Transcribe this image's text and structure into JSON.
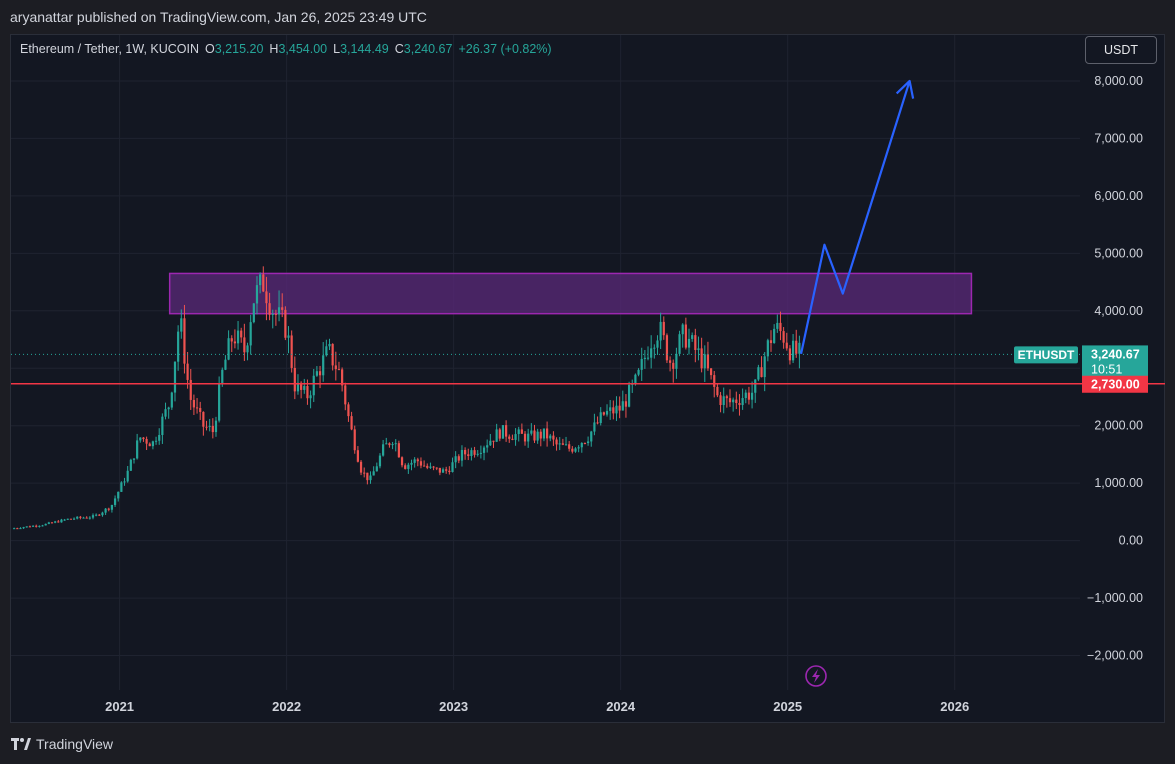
{
  "header": {
    "publisher_text": "aryanattar published on TradingView.com, Jan 26, 2025 23:49 UTC"
  },
  "legend": {
    "symbol": "Ethereum / Tether, 1W, KUCOIN",
    "open_label": "O",
    "open": "3,215.20",
    "high_label": "H",
    "high": "3,454.00",
    "low_label": "L",
    "low": "3,144.49",
    "close_label": "C",
    "close": "3,240.67",
    "change": "+26.37 (+0.82%)"
  },
  "currency_button": "USDT",
  "footer": {
    "brand": "TradingView"
  },
  "colors": {
    "up": "#26a69a",
    "down": "#ef5350",
    "support_line": "#f23645",
    "zone_fill": "#5b2a7a",
    "zone_border": "#9c27b0",
    "arrow": "#2962ff"
  },
  "chart_data": {
    "type": "candlestick",
    "y_axis": {
      "ylim": [
        -2600,
        8800
      ],
      "ticks": [
        -2000,
        -1000,
        0,
        1000,
        2000,
        3000,
        4000,
        5000,
        6000,
        7000,
        8000
      ],
      "tick_labels": [
        "−2,000.00",
        "−1,000.00",
        "0.00",
        "1,000.00",
        "2,000.00",
        "3,000.00",
        "4,000.00",
        "5,000.00",
        "6,000.00",
        "7,000.00",
        "8,000.00"
      ]
    },
    "x_axis": {
      "xlim": [
        2020.35,
        2026.75
      ],
      "ticks": [
        2021,
        2022,
        2023,
        2024,
        2025,
        2026
      ],
      "tick_labels": [
        "2021",
        "2022",
        "2023",
        "2024",
        "2025",
        "2026"
      ]
    },
    "price_path": [
      [
        2020.35,
        210
      ],
      [
        2020.55,
        280
      ],
      [
        2020.7,
        380
      ],
      [
        2020.85,
        420
      ],
      [
        2020.95,
        600
      ],
      [
        2021.05,
        1200
      ],
      [
        2021.12,
        1800
      ],
      [
        2021.2,
        1700
      ],
      [
        2021.3,
        2400
      ],
      [
        2021.36,
        3900
      ],
      [
        2021.42,
        2500
      ],
      [
        2021.5,
        2000
      ],
      [
        2021.56,
        1900
      ],
      [
        2021.62,
        3000
      ],
      [
        2021.68,
        3600
      ],
      [
        2021.75,
        3300
      ],
      [
        2021.8,
        4200
      ],
      [
        2021.86,
        4500
      ],
      [
        2021.92,
        4000
      ],
      [
        2022.0,
        3700
      ],
      [
        2022.05,
        2700
      ],
      [
        2022.12,
        2500
      ],
      [
        2022.18,
        2900
      ],
      [
        2022.25,
        3300
      ],
      [
        2022.32,
        2900
      ],
      [
        2022.38,
        2000
      ],
      [
        2022.45,
        1200
      ],
      [
        2022.5,
        1050
      ],
      [
        2022.58,
        1600
      ],
      [
        2022.64,
        1800
      ],
      [
        2022.7,
        1300
      ],
      [
        2022.78,
        1400
      ],
      [
        2022.85,
        1250
      ],
      [
        2022.95,
        1200
      ],
      [
        2023.05,
        1500
      ],
      [
        2023.15,
        1600
      ],
      [
        2023.28,
        1900
      ],
      [
        2023.35,
        1850
      ],
      [
        2023.45,
        1800
      ],
      [
        2023.55,
        1850
      ],
      [
        2023.62,
        1650
      ],
      [
        2023.7,
        1600
      ],
      [
        2023.8,
        1800
      ],
      [
        2023.9,
        2200
      ],
      [
        2024.0,
        2300
      ],
      [
        2024.1,
        2800
      ],
      [
        2024.18,
        3500
      ],
      [
        2024.23,
        3700
      ],
      [
        2024.3,
        3100
      ],
      [
        2024.38,
        3600
      ],
      [
        2024.45,
        3300
      ],
      [
        2024.5,
        3100
      ],
      [
        2024.58,
        2500
      ],
      [
        2024.65,
        2400
      ],
      [
        2024.72,
        2500
      ],
      [
        2024.8,
        2600
      ],
      [
        2024.86,
        3200
      ],
      [
        2024.92,
        3700
      ],
      [
        2024.97,
        3600
      ],
      [
        2025.02,
        3300
      ],
      [
        2025.07,
        3240
      ]
    ],
    "wick_amplitude_fraction": 0.08,
    "candle_count": 250,
    "current_price": {
      "symbol_label": "ETHUSDT",
      "value": 3240.67,
      "label": "3,240.67",
      "countdown": "10:51"
    },
    "support_line": {
      "value": 2730,
      "label": "2,730.00"
    },
    "resistance_zone": {
      "y_low": 3950,
      "y_high": 4650,
      "x_start": 2021.3,
      "x_end": 2026.1
    },
    "projection_arrow": {
      "points": [
        [
          2025.08,
          3250
        ],
        [
          2025.22,
          5150
        ],
        [
          2025.33,
          4300
        ],
        [
          2025.73,
          8000
        ]
      ]
    }
  }
}
